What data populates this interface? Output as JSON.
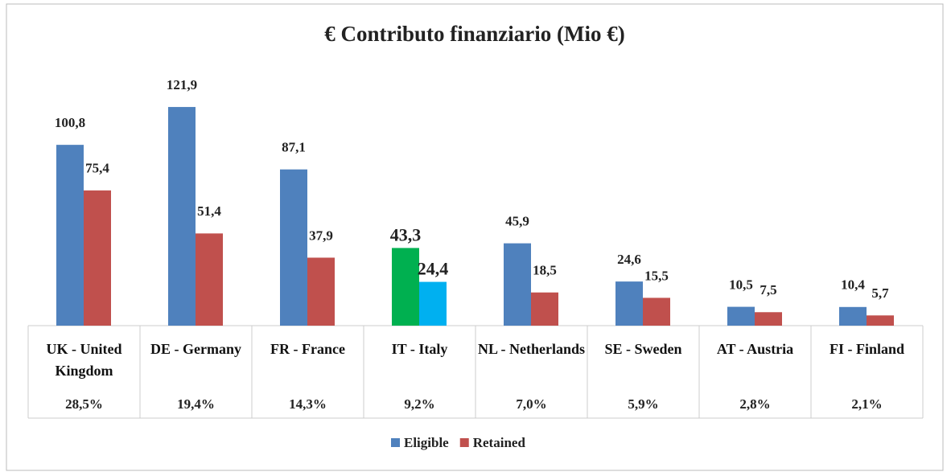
{
  "chart_data": {
    "type": "bar",
    "title": "€ Contributo finanziario (Mio €)",
    "categories": [
      "UK - United Kingdom",
      "DE - Germany",
      "FR - France",
      "IT - Italy",
      "NL - Netherlands",
      "SE - Sweden",
      "AT - Austria",
      "FI - Finland"
    ],
    "series": [
      {
        "name": "Eligible",
        "color": "#4f81bd",
        "colors": [
          "#4f81bd",
          "#4f81bd",
          "#4f81bd",
          "#00b050",
          "#4f81bd",
          "#4f81bd",
          "#4f81bd",
          "#4f81bd"
        ],
        "values": [
          100.8,
          121.9,
          87.1,
          43.3,
          45.9,
          24.6,
          10.5,
          10.4
        ],
        "value_labels": [
          "100,8",
          "121,9",
          "87,1",
          "43,3",
          "45,9",
          "24,6",
          "10,5",
          "10,4"
        ]
      },
      {
        "name": "Retained",
        "color": "#c0504d",
        "colors": [
          "#c0504d",
          "#c0504d",
          "#c0504d",
          "#00b0f0",
          "#c0504d",
          "#c0504d",
          "#c0504d",
          "#c0504d"
        ],
        "values": [
          75.4,
          51.4,
          37.9,
          24.4,
          18.5,
          15.5,
          7.5,
          5.7
        ],
        "value_labels": [
          "75,4",
          "51,4",
          "37,9",
          "24,4",
          "18,5",
          "15,5",
          "7,5",
          "5,7"
        ]
      }
    ],
    "shares": {
      "values": [
        28.5,
        19.4,
        14.3,
        9.2,
        7.0,
        5.9,
        2.8,
        2.1
      ],
      "value_labels": [
        "28,5%",
        "19,4%",
        "14,3%",
        "9,2%",
        "7,0%",
        "5,9%",
        "2,8%",
        "2,1%"
      ]
    },
    "ylim": [
      0,
      130
    ]
  }
}
